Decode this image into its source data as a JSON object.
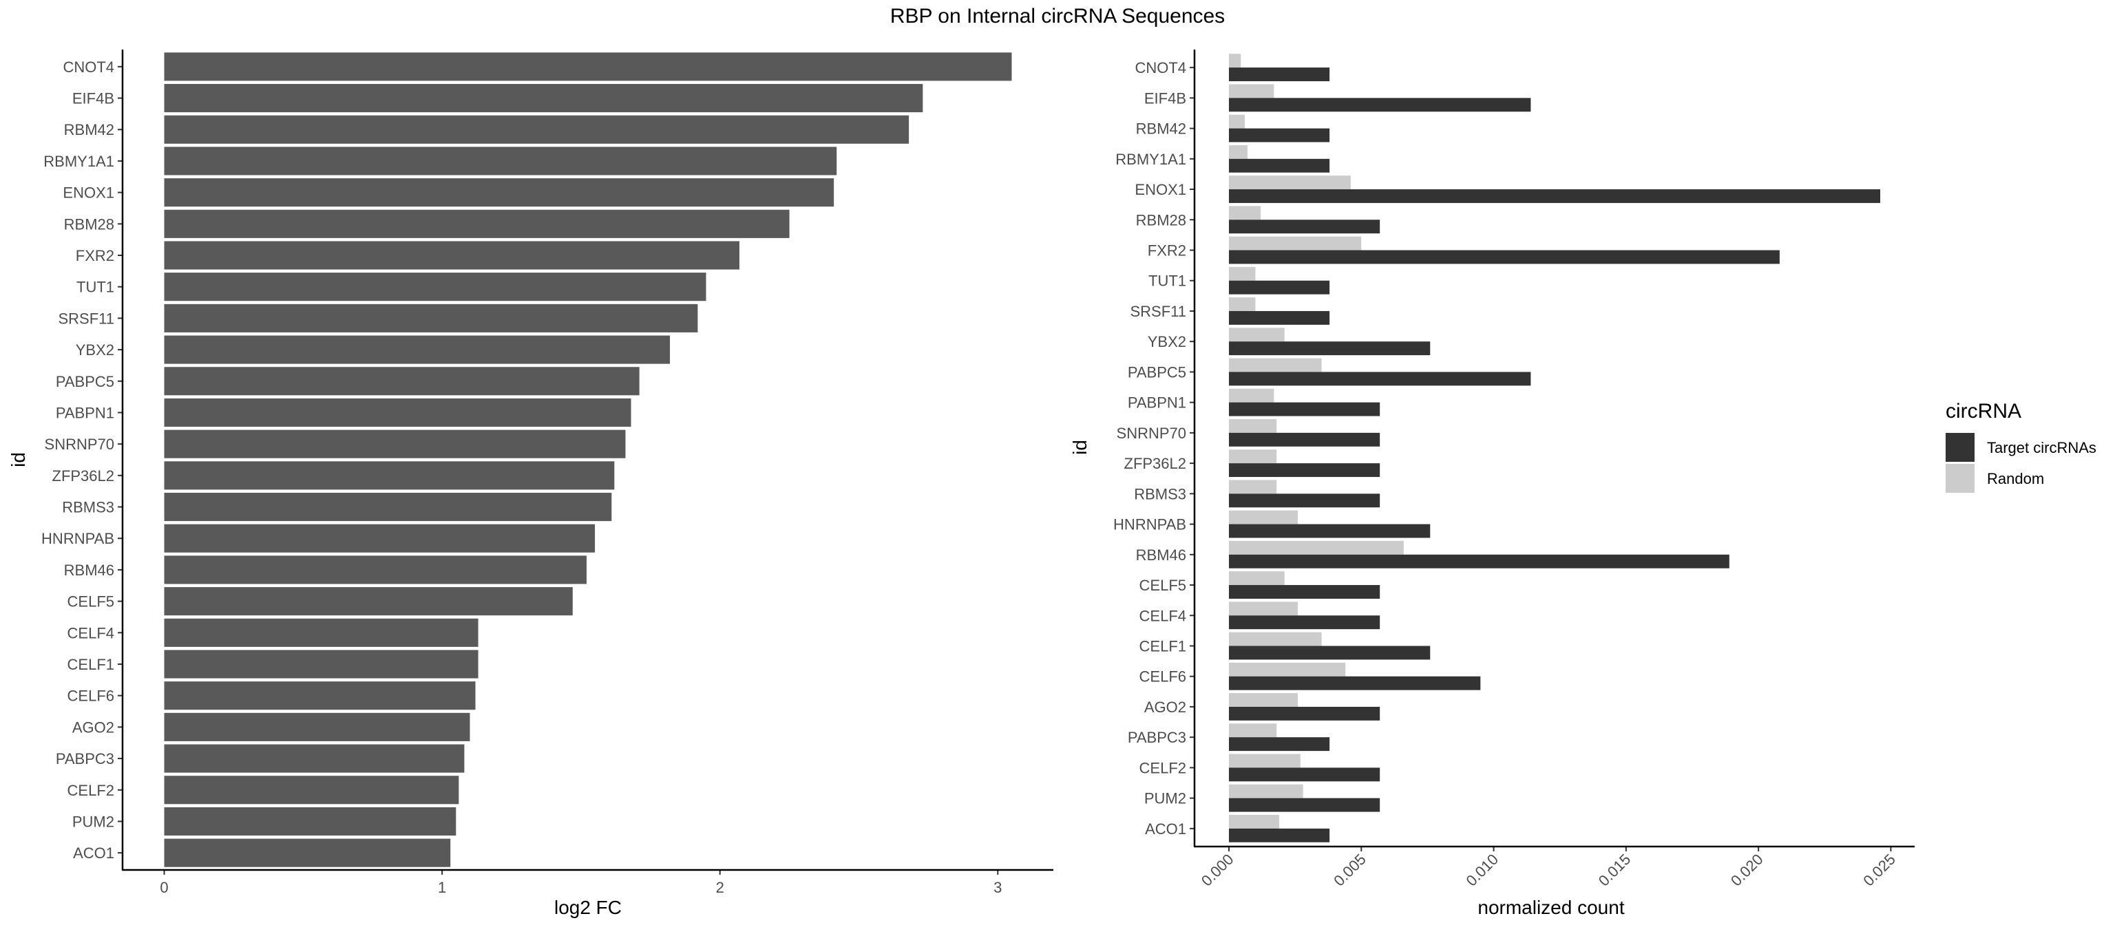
{
  "title": "RBP on Internal circRNA Sequences",
  "colors": {
    "left_bar": "#595959",
    "target": "#333333",
    "random": "#cccccc"
  },
  "chart_data": [
    {
      "type": "bar",
      "orientation": "horizontal",
      "categories": [
        "CNOT4",
        "EIF4B",
        "RBM42",
        "RBMY1A1",
        "ENOX1",
        "RBM28",
        "FXR2",
        "TUT1",
        "SRSF11",
        "YBX2",
        "PABPC5",
        "PABPN1",
        "SNRNP70",
        "ZFP36L2",
        "RBMS3",
        "HNRNPAB",
        "RBM46",
        "CELF5",
        "CELF4",
        "CELF1",
        "CELF6",
        "AGO2",
        "PABPC3",
        "CELF2",
        "PUM2",
        "ACO1"
      ],
      "values": [
        3.05,
        2.73,
        2.68,
        2.42,
        2.41,
        2.25,
        2.07,
        1.95,
        1.92,
        1.82,
        1.71,
        1.68,
        1.66,
        1.62,
        1.61,
        1.55,
        1.52,
        1.47,
        1.13,
        1.13,
        1.12,
        1.1,
        1.08,
        1.06,
        1.05,
        1.03
      ],
      "xlabel": "log2 FC",
      "ylabel": "id",
      "xlim": [
        -0.15,
        3.2
      ],
      "xticks": [
        "0",
        "1",
        "2",
        "3"
      ],
      "grid": false
    },
    {
      "type": "bar",
      "orientation": "horizontal",
      "categories": [
        "CNOT4",
        "EIF4B",
        "RBM42",
        "RBMY1A1",
        "ENOX1",
        "RBM28",
        "FXR2",
        "TUT1",
        "SRSF11",
        "YBX2",
        "PABPC5",
        "PABPN1",
        "SNRNP70",
        "ZFP36L2",
        "RBMS3",
        "HNRNPAB",
        "RBM46",
        "CELF5",
        "CELF4",
        "CELF1",
        "CELF6",
        "AGO2",
        "PABPC3",
        "CELF2",
        "PUM2",
        "ACO1"
      ],
      "series": [
        {
          "name": "Target circRNAs",
          "values": [
            0.0038,
            0.0114,
            0.0038,
            0.0038,
            0.0246,
            0.0057,
            0.0208,
            0.0038,
            0.0038,
            0.0076,
            0.0114,
            0.0057,
            0.0057,
            0.0057,
            0.0057,
            0.0076,
            0.0189,
            0.0057,
            0.0057,
            0.0076,
            0.0095,
            0.0057,
            0.0038,
            0.0057,
            0.0057,
            0.0038
          ]
        },
        {
          "name": "Random",
          "values": [
            0.00045,
            0.0017,
            0.0006,
            0.0007,
            0.0046,
            0.0012,
            0.005,
            0.001,
            0.001,
            0.0021,
            0.0035,
            0.0017,
            0.0018,
            0.0018,
            0.0018,
            0.0026,
            0.0066,
            0.0021,
            0.0026,
            0.0035,
            0.0044,
            0.0026,
            0.0018,
            0.0027,
            0.0028,
            0.0019
          ]
        }
      ],
      "xlabel": "normalized count",
      "ylabel": "id",
      "xlim": [
        -0.0013,
        0.0259
      ],
      "xticks": [
        "0.000",
        "0.005",
        "0.010",
        "0.015",
        "0.020",
        "0.025"
      ],
      "legend": {
        "title": "circRNA",
        "position": "right"
      },
      "grid": false
    }
  ]
}
